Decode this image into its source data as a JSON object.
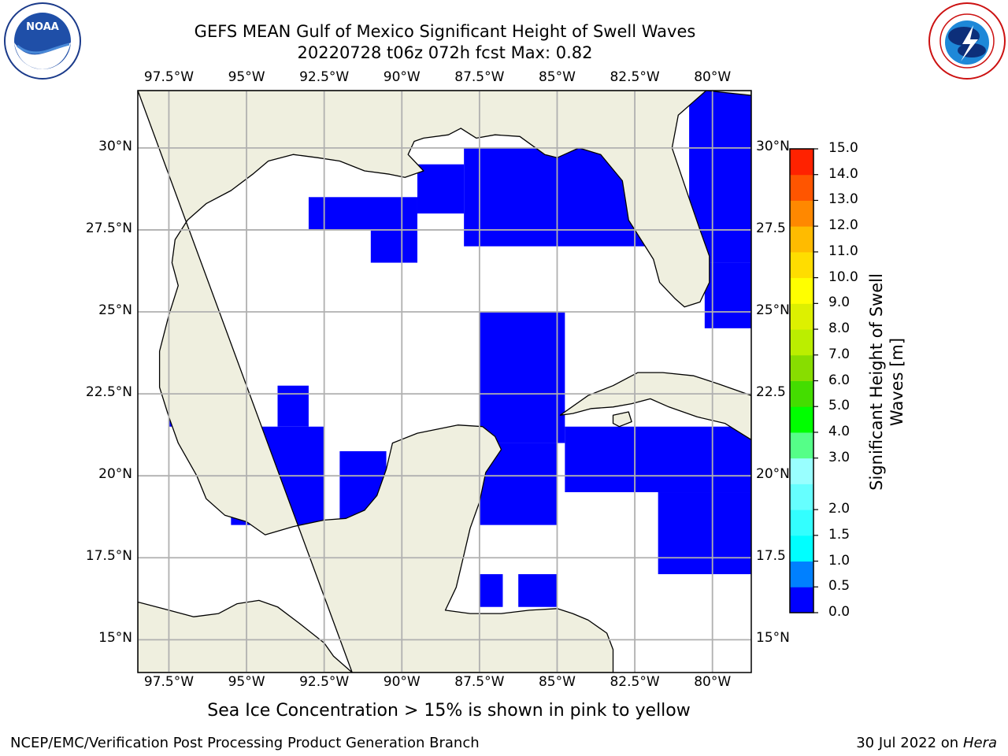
{
  "title": {
    "line1": "GEFS MEAN Gulf of Mexico Significant Height of Swell Waves",
    "line2": "20220728 t06z 072h fcst   Max: 0.82"
  },
  "logos": {
    "left": {
      "name": "noaa-logo",
      "text": "NOAA",
      "ring_text": "NATIONAL OCEANIC AND ATMOSPHERIC ADMINISTRATION · U.S. DEPARTMENT OF COMMERCE"
    },
    "right": {
      "name": "nws-logo",
      "ring_text": "NATIONAL WEATHER SERVICE"
    }
  },
  "map": {
    "projection": "lat-lon",
    "lon_range": [
      -98.5,
      -78.75
    ],
    "lat_range": [
      14.0,
      31.75
    ],
    "grid": true,
    "x_ticks": [
      {
        "lon": -97.5,
        "label": "97.5°W"
      },
      {
        "lon": -95.0,
        "label": "95°W"
      },
      {
        "lon": -92.5,
        "label": "92.5°W"
      },
      {
        "lon": -90.0,
        "label": "90°W"
      },
      {
        "lon": -87.5,
        "label": "87.5°W"
      },
      {
        "lon": -85.0,
        "label": "85°W"
      },
      {
        "lon": -82.5,
        "label": "82.5°W"
      },
      {
        "lon": -80.0,
        "label": "80°W"
      }
    ],
    "y_ticks": [
      {
        "lat": 30.0,
        "label": "30°N"
      },
      {
        "lat": 27.5,
        "label": "27.5°N"
      },
      {
        "lat": 25.0,
        "label": "25°N"
      },
      {
        "lat": 22.5,
        "label": "22.5°N"
      },
      {
        "lat": 20.0,
        "label": "20°N"
      },
      {
        "lat": 17.5,
        "label": "17.5°N"
      },
      {
        "lat": 15.0,
        "label": "15°N"
      }
    ],
    "y_ticks_right": [
      {
        "lat": 30.0,
        "label": "30°N"
      },
      {
        "lat": 27.5,
        "label": "27.5"
      },
      {
        "lat": 25.0,
        "label": "25°N"
      },
      {
        "lat": 22.5,
        "label": "22.5"
      },
      {
        "lat": 20.0,
        "label": "20°N"
      },
      {
        "lat": 17.5,
        "label": "17.5"
      },
      {
        "lat": 15.0,
        "label": "15°N"
      }
    ],
    "colors": {
      "land": "#efefdf",
      "ocean_no_data": "#ffffff",
      "coast": "#000000",
      "grid": "#b0b0b0",
      "pacific_band": "#0080ff"
    },
    "regions": {
      "land": [
        [
          [
            -98.5,
            31.75
          ],
          [
            -78.75,
            31.75
          ],
          [
            -78.75,
            31.6
          ],
          [
            -80.2,
            31.75
          ],
          [
            -81.1,
            31.0
          ],
          [
            -81.3,
            30.0
          ],
          [
            -80.8,
            28.6
          ],
          [
            -80.4,
            27.5
          ],
          [
            -80.1,
            26.7
          ],
          [
            -80.1,
            25.9
          ],
          [
            -80.4,
            25.3
          ],
          [
            -80.9,
            25.15
          ],
          [
            -81.2,
            25.4
          ],
          [
            -81.7,
            25.9
          ],
          [
            -81.9,
            26.6
          ],
          [
            -82.3,
            27.2
          ],
          [
            -82.7,
            27.8
          ],
          [
            -82.8,
            28.4
          ],
          [
            -82.9,
            29.0
          ],
          [
            -83.6,
            29.8
          ],
          [
            -84.3,
            30.0
          ],
          [
            -85.0,
            29.7
          ],
          [
            -85.4,
            29.8
          ],
          [
            -86.2,
            30.35
          ],
          [
            -87.0,
            30.4
          ],
          [
            -87.6,
            30.3
          ],
          [
            -88.1,
            30.6
          ],
          [
            -88.5,
            30.4
          ],
          [
            -89.3,
            30.3
          ],
          [
            -89.6,
            30.2
          ],
          [
            -89.8,
            29.8
          ],
          [
            -89.3,
            29.3
          ],
          [
            -89.9,
            29.1
          ],
          [
            -90.4,
            29.2
          ],
          [
            -91.2,
            29.3
          ],
          [
            -92.0,
            29.6
          ],
          [
            -92.7,
            29.7
          ],
          [
            -93.5,
            29.8
          ],
          [
            -94.3,
            29.6
          ],
          [
            -94.8,
            29.2
          ],
          [
            -95.5,
            28.7
          ],
          [
            -96.3,
            28.3
          ],
          [
            -96.9,
            27.8
          ],
          [
            -97.3,
            27.2
          ],
          [
            -97.4,
            26.5
          ],
          [
            -97.2,
            25.8
          ],
          [
            -97.5,
            24.9
          ],
          [
            -97.8,
            23.8
          ],
          [
            -97.8,
            22.7
          ],
          [
            -97.5,
            21.8
          ],
          [
            -97.2,
            21.0
          ],
          [
            -96.6,
            20.0
          ],
          [
            -96.3,
            19.3
          ],
          [
            -95.7,
            18.8
          ],
          [
            -95.0,
            18.6
          ],
          [
            -94.4,
            18.2
          ],
          [
            -93.5,
            18.45
          ],
          [
            -92.5,
            18.65
          ],
          [
            -91.8,
            18.7
          ],
          [
            -91.2,
            18.95
          ],
          [
            -90.8,
            19.4
          ],
          [
            -90.5,
            20.2
          ],
          [
            -90.3,
            21.0
          ],
          [
            -89.5,
            21.3
          ],
          [
            -88.2,
            21.55
          ],
          [
            -87.4,
            21.5
          ],
          [
            -87.0,
            21.2
          ],
          [
            -86.8,
            20.8
          ],
          [
            -87.3,
            20.1
          ],
          [
            -87.5,
            19.2
          ],
          [
            -87.8,
            18.4
          ],
          [
            -88.0,
            17.6
          ],
          [
            -88.25,
            16.6
          ],
          [
            -88.6,
            15.9
          ],
          [
            -87.8,
            15.8
          ],
          [
            -86.8,
            15.8
          ],
          [
            -85.9,
            15.9
          ],
          [
            -85.0,
            15.95
          ],
          [
            -84.5,
            15.8
          ],
          [
            -84.0,
            15.6
          ],
          [
            -83.4,
            15.2
          ],
          [
            -83.2,
            14.7
          ],
          [
            -83.2,
            14.0
          ],
          [
            -98.5,
            14.0
          ],
          [
            -98.5,
            16.15
          ],
          [
            -97.7,
            15.95
          ],
          [
            -96.7,
            15.7
          ],
          [
            -95.9,
            15.8
          ],
          [
            -95.3,
            16.1
          ],
          [
            -94.6,
            16.2
          ],
          [
            -94.0,
            16.0
          ],
          [
            -93.3,
            15.5
          ],
          [
            -92.5,
            14.9
          ],
          [
            -92.2,
            14.5
          ],
          [
            -91.6,
            14.0
          ]
        ]
      ],
      "islands": [
        [
          [
            -84.9,
            21.85
          ],
          [
            -84.0,
            22.45
          ],
          [
            -83.2,
            22.75
          ],
          [
            -82.4,
            23.15
          ],
          [
            -81.6,
            23.15
          ],
          [
            -80.6,
            23.05
          ],
          [
            -79.8,
            22.8
          ],
          [
            -78.75,
            22.45
          ],
          [
            -78.75,
            21.1
          ],
          [
            -79.6,
            21.6
          ],
          [
            -80.5,
            21.8
          ],
          [
            -81.4,
            22.1
          ],
          [
            -82.0,
            22.35
          ],
          [
            -82.6,
            22.2
          ],
          [
            -83.2,
            22.1
          ],
          [
            -83.9,
            22.05
          ],
          [
            -84.5,
            21.9
          ]
        ],
        [
          [
            -83.2,
            21.85
          ],
          [
            -82.7,
            21.95
          ],
          [
            -82.6,
            21.65
          ],
          [
            -83.0,
            21.5
          ],
          [
            -83.2,
            21.6
          ]
        ]
      ],
      "pacific_band": [
        [
          [
            -98.5,
            16.15
          ],
          [
            -97.7,
            15.95
          ],
          [
            -96.7,
            15.7
          ],
          [
            -95.9,
            15.8
          ],
          [
            -95.3,
            16.1
          ],
          [
            -94.6,
            16.2
          ],
          [
            -94.0,
            16.0
          ],
          [
            -93.3,
            15.5
          ],
          [
            -92.5,
            14.9
          ],
          [
            -92.2,
            14.5
          ],
          [
            -91.6,
            14.0
          ],
          [
            -98.5,
            14.0
          ]
        ]
      ]
    }
  },
  "chart_data": {
    "type": "heatmap",
    "field": "Significant Height of Swell Waves",
    "units": "m",
    "max_value": 0.82,
    "grid_resolution_deg": 0.5,
    "description_of_cells": "cells listed by class; all shown Gulf/Caribbean values fall in 0.0-0.5 m class",
    "cells_0_0_to_0_5": [
      {
        "lon": [
          -88.0,
          -81.5
        ],
        "lat": [
          27.0,
          30.0
        ]
      },
      {
        "lon": [
          -89.5,
          -88.0
        ],
        "lat": [
          28.0,
          29.5
        ]
      },
      {
        "lon": [
          -93.0,
          -89.5
        ],
        "lat": [
          27.5,
          28.5
        ]
      },
      {
        "lon": [
          -91.0,
          -89.5
        ],
        "lat": [
          26.5,
          27.5
        ]
      },
      {
        "lon": [
          -80.75,
          -78.75
        ],
        "lat": [
          26.5,
          31.75
        ]
      },
      {
        "lon": [
          -80.25,
          -78.75
        ],
        "lat": [
          24.5,
          26.5
        ]
      },
      {
        "lon": [
          -87.5,
          -84.75
        ],
        "lat": [
          21.0,
          25.0
        ]
      },
      {
        "lon": [
          -84.75,
          -78.75
        ],
        "lat": [
          19.5,
          21.5
        ]
      },
      {
        "lon": [
          -87.5,
          -85.0
        ],
        "lat": [
          18.5,
          21.0
        ]
      },
      {
        "lon": [
          -81.75,
          -78.75
        ],
        "lat": [
          17.0,
          19.5
        ]
      },
      {
        "lon": [
          -95.5,
          -92.5
        ],
        "lat": [
          18.5,
          21.5
        ]
      },
      {
        "lon": [
          -94.0,
          -93.0
        ],
        "lat": [
          21.5,
          22.75
        ]
      },
      {
        "lon": [
          -92.0,
          -90.5
        ],
        "lat": [
          18.5,
          20.75
        ]
      },
      {
        "lon": [
          -86.25,
          -85.0
        ],
        "lat": [
          16.0,
          17.0
        ]
      },
      {
        "lon": [
          -87.5,
          -86.75
        ],
        "lat": [
          16.0,
          17.0
        ]
      },
      {
        "lon": [
          -97.5,
          -97.0
        ],
        "lat": [
          21.5,
          22.5
        ]
      }
    ],
    "cells_1_0_to_1_5_pacific": [
      {
        "lon": [
          -98.5,
          -92.0
        ],
        "lat": [
          14.0,
          16.1
        ]
      }
    ],
    "colorbar": {
      "label_line1": "Significant Height of Swell",
      "label_line2": "Waves [m]",
      "boundaries": [
        0.0,
        0.5,
        1.0,
        1.5,
        2.0,
        2.5,
        3.0,
        4.0,
        5.0,
        6.0,
        7.0,
        8.0,
        9.0,
        10.0,
        11.0,
        12.0,
        13.0,
        14.0,
        15.0
      ],
      "tick_labels": [
        "0.0",
        "0.5",
        "1.0",
        "1.5",
        "2.0",
        "3.0",
        "4.0",
        "5.0",
        "6.0",
        "7.0",
        "8.0",
        "9.0",
        "10.0",
        "11.0",
        "12.0",
        "13.0",
        "14.0",
        "15.0"
      ],
      "colors": [
        "#0000ff",
        "#0080ff",
        "#00ffff",
        "#33ffff",
        "#66ffff",
        "#99ffff",
        "#55ff88",
        "#00ff00",
        "#44dd00",
        "#88dd00",
        "#bbee00",
        "#ddf000",
        "#ffff00",
        "#ffdd00",
        "#ffbb00",
        "#ff8800",
        "#ff5500",
        "#ff2200",
        "#ff0000"
      ]
    }
  },
  "note": "Sea Ice Concentration > 15% is shown in pink to yellow",
  "footer": {
    "left": "NCEP/EMC/Verification Post Processing Product Generation Branch",
    "right_date": "30 Jul 2022 on",
    "right_host": "Hera"
  }
}
